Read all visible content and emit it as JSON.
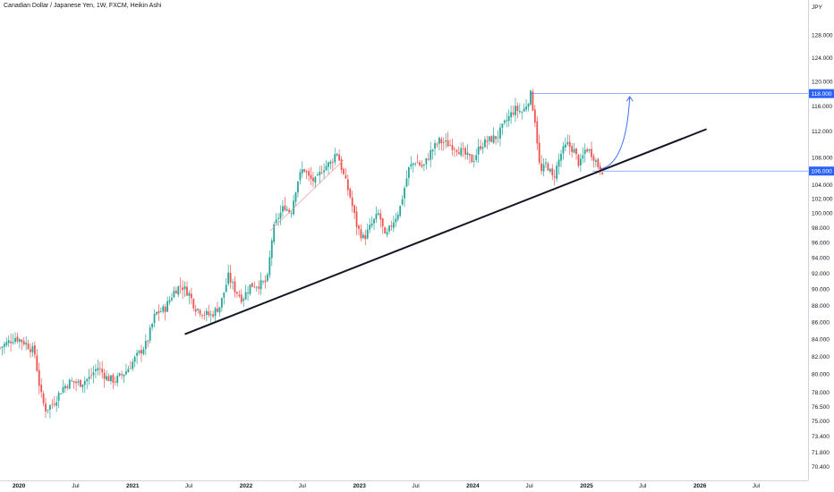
{
  "chart_data": {
    "type": "candlestick",
    "title": "Canadian Dollar / Japanese Yen, 1W, FXCM, Heikin Ashi",
    "currency": "JPY",
    "y_axis": {
      "scale": "log",
      "range": [
        69.5,
        134
      ],
      "ticks": [
        "128.000",
        "124.000",
        "120.000",
        "116.000",
        "112.000",
        "108.000",
        "104.000",
        "102.000",
        "100.000",
        "98.000",
        "96.000",
        "94.000",
        "92.000",
        "90.000",
        "88.000",
        "86.000",
        "84.000",
        "82.000",
        "80.000",
        "78.000",
        "76.500",
        "75.000",
        "73.400",
        "71.800",
        "70.400"
      ]
    },
    "x_axis": {
      "ticks": [
        {
          "label": "2020",
          "date": "2020-01-01",
          "year": true
        },
        {
          "label": "Jul",
          "date": "2020-07-01",
          "year": false
        },
        {
          "label": "2021",
          "date": "2021-01-01",
          "year": true
        },
        {
          "label": "Jul",
          "date": "2021-07-01",
          "year": false
        },
        {
          "label": "2022",
          "date": "2022-01-01",
          "year": true
        },
        {
          "label": "Jul",
          "date": "2022-07-01",
          "year": false
        },
        {
          "label": "2023",
          "date": "2023-01-01",
          "year": true
        },
        {
          "label": "Jul",
          "date": "2023-07-01",
          "year": false
        },
        {
          "label": "2024",
          "date": "2024-01-01",
          "year": true
        },
        {
          "label": "Jul",
          "date": "2024-07-01",
          "year": false
        },
        {
          "label": "2025",
          "date": "2025-01-01",
          "year": true
        },
        {
          "label": "Jul",
          "date": "2025-07-01",
          "year": false
        },
        {
          "label": "2026",
          "date": "2026-01-01",
          "year": true
        },
        {
          "label": "Jul",
          "date": "2026-07-01",
          "year": false
        }
      ]
    },
    "price_path": [
      [
        "2019-11-01",
        83.0
      ],
      [
        "2019-12-20",
        84.2
      ],
      [
        "2020-01-20",
        83.6
      ],
      [
        "2020-02-20",
        82.5
      ],
      [
        "2020-03-10",
        78.0
      ],
      [
        "2020-03-25",
        76.2
      ],
      [
        "2020-04-20",
        76.8
      ],
      [
        "2020-05-20",
        78.5
      ],
      [
        "2020-06-15",
        79.2
      ],
      [
        "2020-07-15",
        79.0
      ],
      [
        "2020-08-15",
        79.6
      ],
      [
        "2020-09-10",
        80.8
      ],
      [
        "2020-10-10",
        79.6
      ],
      [
        "2020-11-05",
        79.3
      ],
      [
        "2020-12-10",
        80.3
      ],
      [
        "2021-01-10",
        81.8
      ],
      [
        "2021-02-15",
        83.5
      ],
      [
        "2021-03-15",
        87.0
      ],
      [
        "2021-04-15",
        87.6
      ],
      [
        "2021-05-15",
        89.8
      ],
      [
        "2021-06-05",
        90.5
      ],
      [
        "2021-07-01",
        89.5
      ],
      [
        "2021-07-20",
        87.8
      ],
      [
        "2021-08-20",
        87.0
      ],
      [
        "2021-09-10",
        86.8
      ],
      [
        "2021-10-10",
        88.0
      ],
      [
        "2021-11-05",
        91.6
      ],
      [
        "2021-11-25",
        90.0
      ],
      [
        "2021-12-20",
        88.8
      ],
      [
        "2022-01-15",
        90.5
      ],
      [
        "2022-02-15",
        90.6
      ],
      [
        "2022-03-10",
        91.0
      ],
      [
        "2022-03-28",
        97.5
      ],
      [
        "2022-04-15",
        99.5
      ],
      [
        "2022-05-05",
        101.0
      ],
      [
        "2022-05-25",
        100.0
      ],
      [
        "2022-06-15",
        104.5
      ],
      [
        "2022-07-05",
        106.5
      ],
      [
        "2022-07-25",
        104.8
      ],
      [
        "2022-08-15",
        104.5
      ],
      [
        "2022-09-05",
        106.5
      ],
      [
        "2022-10-01",
        107.2
      ],
      [
        "2022-10-20",
        109.0
      ],
      [
        "2022-11-10",
        105.5
      ],
      [
        "2022-12-01",
        102.5
      ],
      [
        "2022-12-25",
        98.0
      ],
      [
        "2023-01-15",
        96.5
      ],
      [
        "2023-02-10",
        98.5
      ],
      [
        "2023-03-05",
        100.0
      ],
      [
        "2023-03-25",
        96.5
      ],
      [
        "2023-04-15",
        98.5
      ],
      [
        "2023-05-10",
        100.5
      ],
      [
        "2023-06-10",
        106.5
      ],
      [
        "2023-07-01",
        107.5
      ],
      [
        "2023-07-25",
        106.5
      ],
      [
        "2023-08-20",
        109.0
      ],
      [
        "2023-09-15",
        110.5
      ],
      [
        "2023-10-15",
        110.0
      ],
      [
        "2023-11-05",
        109.6
      ],
      [
        "2023-12-05",
        108.5
      ],
      [
        "2024-01-01",
        107.5
      ],
      [
        "2024-01-25",
        109.8
      ],
      [
        "2024-02-20",
        110.6
      ],
      [
        "2024-03-20",
        111.2
      ],
      [
        "2024-04-20",
        113.8
      ],
      [
        "2024-05-15",
        115.5
      ],
      [
        "2024-06-10",
        115.0
      ],
      [
        "2024-07-05",
        117.8
      ],
      [
        "2024-07-20",
        113.5
      ],
      [
        "2024-08-05",
        105.5
      ],
      [
        "2024-08-25",
        107.2
      ],
      [
        "2024-09-15",
        104.8
      ],
      [
        "2024-10-10",
        108.5
      ],
      [
        "2024-10-30",
        110.0
      ],
      [
        "2024-11-20",
        109.2
      ],
      [
        "2024-12-10",
        106.8
      ],
      [
        "2024-12-30",
        109.5
      ],
      [
        "2025-01-20",
        108.5
      ],
      [
        "2025-02-10",
        106.5
      ],
      [
        "2025-02-25",
        106.0
      ]
    ],
    "trendlines": [
      {
        "kind": "support",
        "from": [
          "2021-06-20",
          84.6
        ],
        "to": [
          "2026-01-20",
          112.3
        ],
        "color": "#131722"
      },
      {
        "kind": "thin",
        "from": [
          "2022-03-20",
          97.6
        ],
        "to": [
          "2022-11-10",
          107.6
        ],
        "color": "#ef9a9a"
      }
    ],
    "levels": [
      {
        "price": 118.0,
        "label": "118.000",
        "from": "2024-07-05",
        "color": "#2962ff"
      },
      {
        "price": 106.0,
        "label": "106.000",
        "from": "2025-01-20",
        "color": "#2962ff"
      }
    ],
    "projection_arrow": {
      "from": [
        "2025-02-15",
        106.3
      ],
      "to": [
        "2025-05-20",
        117.5
      ],
      "color": "#2962ff"
    },
    "colors": {
      "up": "#26a69a",
      "down": "#ef5350",
      "axis_badge": "#2962ff"
    }
  }
}
